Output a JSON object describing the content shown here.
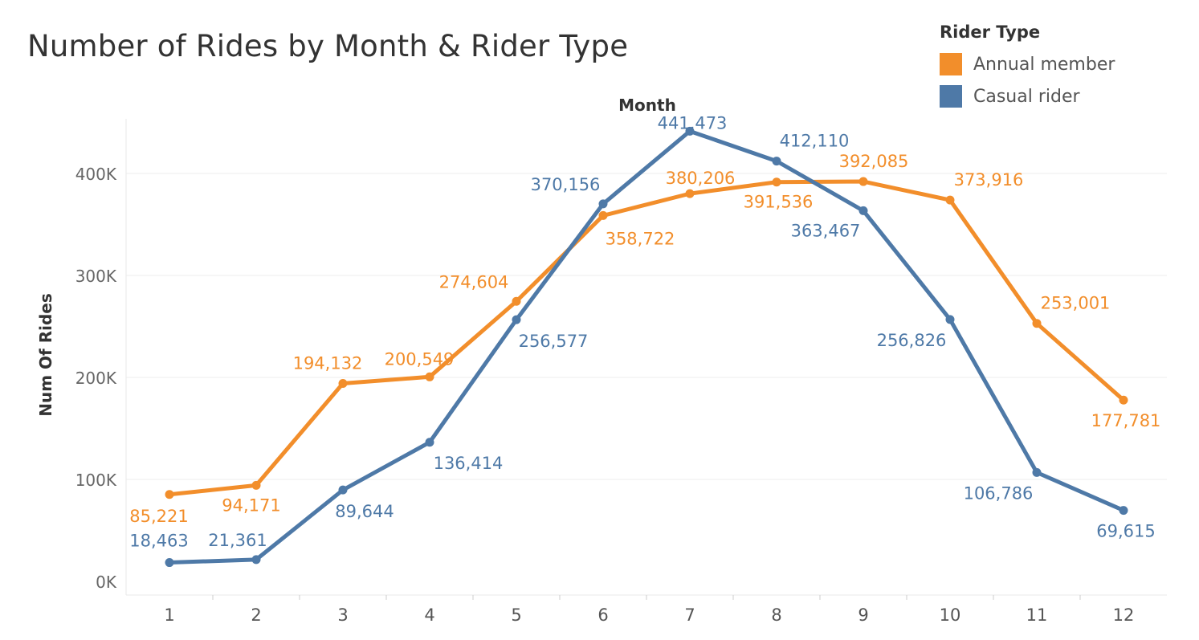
{
  "chart_data": {
    "type": "line",
    "title": "Number of Rides by Month & Rider Type",
    "xlabel": "Month",
    "ylabel": "Num Of Rides",
    "categories": [
      "1",
      "2",
      "3",
      "4",
      "5",
      "6",
      "7",
      "8",
      "9",
      "10",
      "11",
      "12"
    ],
    "y_ticks": [
      "0K",
      "100K",
      "200K",
      "300K",
      "400K"
    ],
    "y_tick_values": [
      0,
      100000,
      200000,
      300000,
      400000
    ],
    "ylim": [
      0,
      460000
    ],
    "grid": true,
    "legend": {
      "title": "Rider Type",
      "position": "top-right"
    },
    "series": [
      {
        "name": "Annual member",
        "color": "#F28E2B",
        "values": [
          85221,
          94171,
          194132,
          200549,
          274604,
          358722,
          380206,
          391536,
          392085,
          373916,
          253001,
          177781
        ],
        "labels": [
          "85,221",
          "94,171",
          "194,132",
          "200,549",
          "274,604",
          "358,722",
          "380,206",
          "391,536",
          "392,085",
          "373,916",
          "253,001",
          "177,781"
        ]
      },
      {
        "name": "Casual rider",
        "color": "#4E79A7",
        "values": [
          18463,
          21361,
          89644,
          136414,
          256577,
          370156,
          441473,
          412110,
          363467,
          256826,
          106786,
          69615
        ],
        "labels": [
          "18,463",
          "21,361",
          "89,644",
          "136,414",
          "256,577",
          "370,156",
          "441,473",
          "412,110",
          "363,467",
          "256,826",
          "106,786",
          "69,615"
        ]
      }
    ]
  }
}
